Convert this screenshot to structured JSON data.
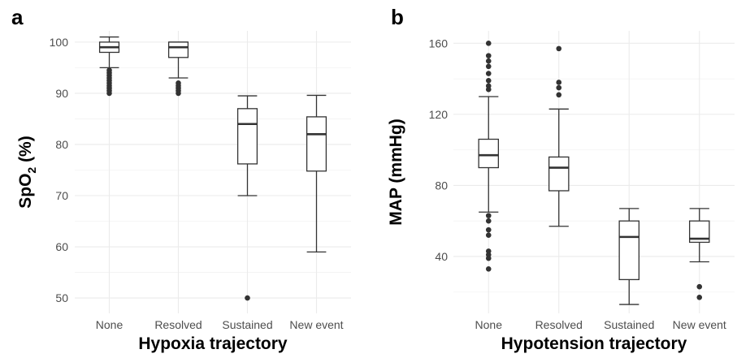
{
  "chart_data": [
    {
      "panel_label": "a",
      "type": "box",
      "categories": [
        "None",
        "Resolved",
        "Sustained",
        "New event"
      ],
      "xlabel": "Hypoxia trajectory",
      "ylabel_main": "SpO",
      "ylabel_sub": "2",
      "ylabel_tail": " (%)",
      "ylim": [
        47,
        102.2
      ],
      "yticks": [
        50,
        60,
        70,
        80,
        90,
        100
      ],
      "ytick_labels": [
        "50",
        "60",
        "70",
        "80",
        "90",
        "100"
      ],
      "grid": true,
      "boxes": [
        {
          "category": "None",
          "whisker_low": 95,
          "q1": 98,
          "median": 99,
          "q3": 100,
          "whisker_high": 101,
          "outliers": [
            90,
            90.5,
            91,
            91.5,
            92,
            92.5,
            93,
            93.5,
            94,
            94.5
          ]
        },
        {
          "category": "Resolved",
          "whisker_low": 93,
          "q1": 97,
          "median": 99,
          "q3": 100,
          "whisker_high": 100,
          "outliers": [
            90,
            90.5,
            91,
            91.5,
            92
          ]
        },
        {
          "category": "Sustained",
          "whisker_low": 70,
          "q1": 76.2,
          "median": 84,
          "q3": 87,
          "whisker_high": 89.5,
          "outliers": [
            50
          ]
        },
        {
          "category": "New event",
          "whisker_low": 59,
          "q1": 74.8,
          "median": 82,
          "q3": 85.4,
          "whisker_high": 89.6,
          "outliers": []
        }
      ]
    },
    {
      "panel_label": "b",
      "type": "box",
      "categories": [
        "None",
        "Resolved",
        "Sustained",
        "New event"
      ],
      "xlabel": "Hypotension trajectory",
      "ylabel_main": "MAP (mmHg)",
      "ylabel_sub": "",
      "ylabel_tail": "",
      "ylim": [
        8,
        167
      ],
      "yticks": [
        40,
        80,
        120,
        160
      ],
      "ytick_labels": [
        "40",
        "80",
        "120",
        "160"
      ],
      "grid": true,
      "boxes": [
        {
          "category": "None",
          "whisker_low": 65,
          "q1": 90,
          "median": 97,
          "q3": 106,
          "whisker_high": 130,
          "outliers": [
            160,
            153,
            150,
            147,
            143,
            139,
            136,
            134,
            63,
            60,
            55,
            52,
            43,
            41,
            39,
            33
          ]
        },
        {
          "category": "Resolved",
          "whisker_low": 57,
          "q1": 77,
          "median": 90,
          "q3": 96,
          "whisker_high": 123,
          "outliers": [
            157,
            138,
            135,
            131
          ]
        },
        {
          "category": "Sustained",
          "whisker_low": 13,
          "q1": 27,
          "median": 51,
          "q3": 60,
          "whisker_high": 67,
          "outliers": []
        },
        {
          "category": "New event",
          "whisker_low": 37,
          "q1": 48,
          "median": 50,
          "q3": 60,
          "whisker_high": 67,
          "outliers": [
            23,
            17
          ]
        }
      ]
    }
  ]
}
